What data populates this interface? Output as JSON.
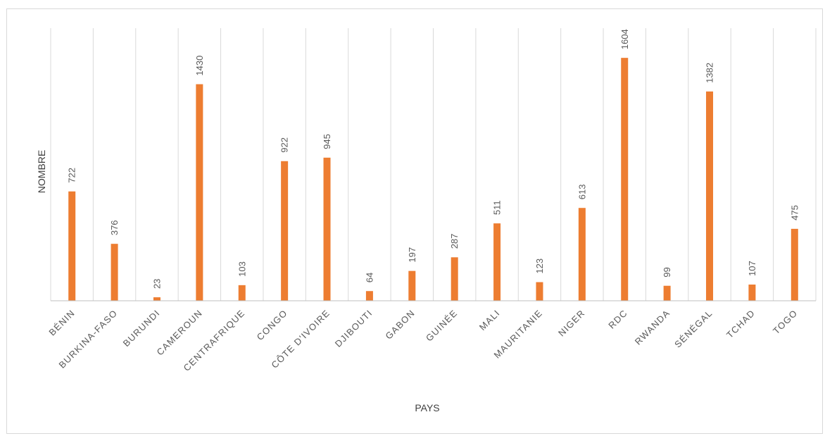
{
  "chart_data": {
    "type": "bar",
    "title": "",
    "xlabel": "PAYS",
    "ylabel": "NOMBRE",
    "categories": [
      "BÉNIN",
      "BURKINA-FASO",
      "BURUNDI",
      "CAMEROUN",
      "CENTRAFRIQUE",
      "CONGO",
      "CÔTE D'IVOIRE",
      "DJIBOUTI",
      "GABON",
      "GUINÉE",
      "MALI",
      "MAURITANIE",
      "NIGER",
      "RDC",
      "RWANDA",
      "SÉNÉGAL",
      "TCHAD",
      "TOGO"
    ],
    "values": [
      722,
      376,
      23,
      1430,
      103,
      922,
      945,
      64,
      197,
      287,
      511,
      123,
      613,
      1604,
      99,
      1382,
      107,
      475
    ],
    "ylim": [
      0,
      1800
    ],
    "grid": "vertical",
    "legend": "none",
    "color": "#ED7D31"
  }
}
